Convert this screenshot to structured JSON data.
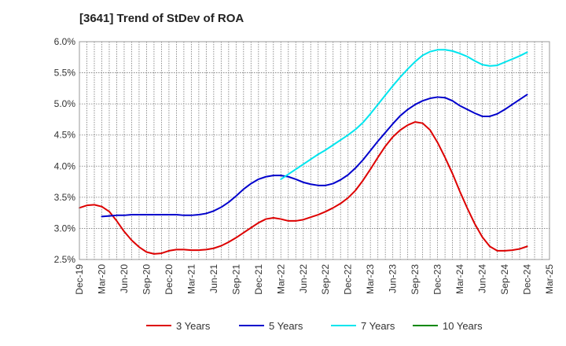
{
  "chart_data": {
    "type": "line",
    "title": "[3641]  Trend of StDev of ROA",
    "xlabel": "",
    "ylabel": "",
    "ylim": [
      2.5,
      6.0
    ],
    "y_ticks": [
      "2.5%",
      "3.0%",
      "3.5%",
      "4.0%",
      "4.5%",
      "5.0%",
      "5.5%",
      "6.0%"
    ],
    "x_ticks": [
      "Dec-19",
      "Mar-20",
      "Jun-20",
      "Sep-20",
      "Dec-20",
      "Mar-21",
      "Jun-21",
      "Sep-21",
      "Dec-21",
      "Mar-22",
      "Jun-22",
      "Sep-22",
      "Dec-22",
      "Mar-23",
      "Jun-23",
      "Sep-23",
      "Dec-23",
      "Mar-24",
      "Jun-24",
      "Sep-24",
      "Dec-24",
      "Mar-25"
    ],
    "grid": true,
    "legend_position": "bottom",
    "series": [
      {
        "name": "3 Years",
        "color": "#dd0000",
        "x": [
          "Dec-19",
          "Jan-20",
          "Feb-20",
          "Mar-20",
          "Apr-20",
          "May-20",
          "Jun-20",
          "Jul-20",
          "Aug-20",
          "Sep-20",
          "Oct-20",
          "Nov-20",
          "Dec-20",
          "Jan-21",
          "Feb-21",
          "Mar-21",
          "Apr-21",
          "May-21",
          "Jun-21",
          "Jul-21",
          "Aug-21",
          "Sep-21",
          "Oct-21",
          "Nov-21",
          "Dec-21",
          "Jan-22",
          "Feb-22",
          "Mar-22",
          "Apr-22",
          "May-22",
          "Jun-22",
          "Jul-22",
          "Aug-22",
          "Sep-22",
          "Oct-22",
          "Nov-22",
          "Dec-22",
          "Jan-23",
          "Feb-23",
          "Mar-23",
          "Apr-23",
          "May-23",
          "Jun-23",
          "Jul-23",
          "Aug-23",
          "Sep-23",
          "Oct-23",
          "Nov-23",
          "Dec-23",
          "Jan-24",
          "Feb-24",
          "Mar-24",
          "Apr-24",
          "May-24",
          "Jun-24",
          "Jul-24",
          "Aug-24",
          "Sep-24",
          "Oct-24",
          "Nov-24",
          "Dec-24"
        ],
        "values": [
          3.33,
          3.37,
          3.38,
          3.35,
          3.27,
          3.12,
          2.95,
          2.81,
          2.7,
          2.62,
          2.59,
          2.6,
          2.64,
          2.66,
          2.66,
          2.65,
          2.65,
          2.66,
          2.68,
          2.72,
          2.78,
          2.85,
          2.93,
          3.01,
          3.09,
          3.15,
          3.17,
          3.15,
          3.12,
          3.12,
          3.14,
          3.18,
          3.22,
          3.27,
          3.33,
          3.4,
          3.49,
          3.61,
          3.77,
          3.95,
          4.14,
          4.32,
          4.47,
          4.58,
          4.66,
          4.71,
          4.69,
          4.58,
          4.38,
          4.14,
          3.88,
          3.59,
          3.32,
          3.07,
          2.86,
          2.71,
          2.64,
          2.64,
          2.65,
          2.67,
          2.71
        ]
      },
      {
        "name": "5 Years",
        "color": "#0000cc",
        "x": [
          "Mar-20",
          "Apr-20",
          "May-20",
          "Jun-20",
          "Jul-20",
          "Aug-20",
          "Sep-20",
          "Oct-20",
          "Nov-20",
          "Dec-20",
          "Jan-21",
          "Feb-21",
          "Mar-21",
          "Apr-21",
          "May-21",
          "Jun-21",
          "Jul-21",
          "Aug-21",
          "Sep-21",
          "Oct-21",
          "Nov-21",
          "Dec-21",
          "Jan-22",
          "Feb-22",
          "Mar-22",
          "Apr-22",
          "May-22",
          "Jun-22",
          "Jul-22",
          "Aug-22",
          "Sep-22",
          "Oct-22",
          "Nov-22",
          "Dec-22",
          "Jan-23",
          "Feb-23",
          "Mar-23",
          "Apr-23",
          "May-23",
          "Jun-23",
          "Jul-23",
          "Aug-23",
          "Sep-23",
          "Oct-23",
          "Nov-23",
          "Dec-23",
          "Jan-24",
          "Feb-24",
          "Mar-24",
          "Apr-24",
          "May-24",
          "Jun-24",
          "Jul-24",
          "Aug-24",
          "Sep-24",
          "Oct-24",
          "Nov-24",
          "Dec-24"
        ],
        "values": [
          3.19,
          3.2,
          3.21,
          3.21,
          3.22,
          3.22,
          3.22,
          3.22,
          3.22,
          3.22,
          3.22,
          3.21,
          3.21,
          3.22,
          3.24,
          3.28,
          3.34,
          3.42,
          3.52,
          3.63,
          3.72,
          3.79,
          3.83,
          3.85,
          3.85,
          3.83,
          3.79,
          3.74,
          3.71,
          3.69,
          3.69,
          3.72,
          3.78,
          3.86,
          3.97,
          4.1,
          4.25,
          4.4,
          4.54,
          4.68,
          4.81,
          4.91,
          4.99,
          5.05,
          5.09,
          5.11,
          5.1,
          5.05,
          4.97,
          4.91,
          4.85,
          4.8,
          4.8,
          4.84,
          4.91,
          4.99,
          5.07,
          5.15
        ]
      },
      {
        "name": "7 Years",
        "color": "#00e5ee",
        "x": [
          "Mar-22",
          "Apr-22",
          "May-22",
          "Jun-22",
          "Jul-22",
          "Aug-22",
          "Sep-22",
          "Oct-22",
          "Nov-22",
          "Dec-22",
          "Jan-23",
          "Feb-23",
          "Mar-23",
          "Apr-23",
          "May-23",
          "Jun-23",
          "Jul-23",
          "Aug-23",
          "Sep-23",
          "Oct-23",
          "Nov-23",
          "Dec-23",
          "Jan-24",
          "Feb-24",
          "Mar-24",
          "Apr-24",
          "May-24",
          "Jun-24",
          "Jul-24",
          "Aug-24",
          "Sep-24",
          "Oct-24",
          "Nov-24",
          "Dec-24"
        ],
        "values": [
          3.79,
          3.87,
          3.95,
          4.03,
          4.11,
          4.19,
          4.26,
          4.34,
          4.42,
          4.5,
          4.59,
          4.7,
          4.84,
          4.99,
          5.14,
          5.29,
          5.43,
          5.56,
          5.68,
          5.78,
          5.84,
          5.87,
          5.87,
          5.85,
          5.81,
          5.76,
          5.69,
          5.63,
          5.61,
          5.62,
          5.67,
          5.72,
          5.77,
          5.83
        ]
      },
      {
        "name": "10 Years",
        "color": "#008800",
        "x": [],
        "values": []
      }
    ]
  }
}
